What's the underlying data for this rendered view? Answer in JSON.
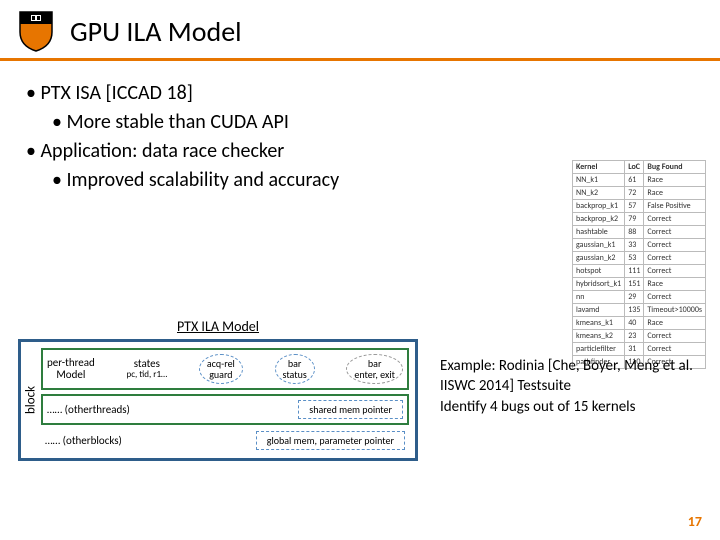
{
  "header": {
    "title": "GPU ILA Model"
  },
  "bullets": {
    "l1a": "PTX ISA [ICCAD 18]",
    "l2a": "More stable than CUDA API",
    "l1b": "Application: data race checker",
    "l2b": "Improved scalability and accuracy"
  },
  "table": {
    "headers": [
      "Kernel",
      "LoC",
      "Bug Found"
    ],
    "rows": [
      [
        "NN_k1",
        "61",
        "Race"
      ],
      [
        "NN_k2",
        "72",
        "Race"
      ],
      [
        "backprop_k1",
        "57",
        "False Positive"
      ],
      [
        "backprop_k2",
        "79",
        "Correct"
      ],
      [
        "hashtable",
        "88",
        "Correct"
      ],
      [
        "gaussian_k1",
        "33",
        "Correct"
      ],
      [
        "gaussian_k2",
        "53",
        "Correct"
      ],
      [
        "hotspot",
        "111",
        "Correct"
      ],
      [
        "hybridsort_k1",
        "151",
        "Race"
      ],
      [
        "nn",
        "29",
        "Correct"
      ],
      [
        "lavamd",
        "135",
        "Timeout>10000s"
      ],
      [
        "kmeans_k1",
        "40",
        "Race"
      ],
      [
        "kmeans_k2",
        "23",
        "Correct"
      ],
      [
        "particlefilter",
        "31",
        "Correct"
      ],
      [
        "pathfinder",
        "110",
        "Correct"
      ]
    ]
  },
  "diagram": {
    "caption": "PTX ILA Model",
    "block_label": "block",
    "perthread_l1": "per-thread",
    "perthread_l2": "Model",
    "states_l1": "states",
    "states_l2": "pc, tid, r1…",
    "oval1_l1": "acq-rel",
    "oval1_l2": "guard",
    "oval2_l1": "bar",
    "oval2_l2": "status",
    "oval3_l1": "bar",
    "oval3_l2": "enter, exit",
    "otherthreads": "…… (otherthreads)",
    "shared_mem": "shared mem pointer",
    "otherblocks": "…… (otherblocks)",
    "global_mem": "global mem, parameter pointer"
  },
  "example": {
    "line1a": "Example: Rodinia ",
    "line1b": "[Che, Boyer, Meng et al. IISWC 2014] ",
    "line1c": "Testsuite",
    "line2": "Identify 4 bugs out of 15 kernels"
  },
  "page_number": "17",
  "colors": {
    "orange": "#e77500",
    "blue_border": "#2e5d8a",
    "green_border": "#2e7d3e",
    "dashed_blue": "#5a8fc6"
  }
}
